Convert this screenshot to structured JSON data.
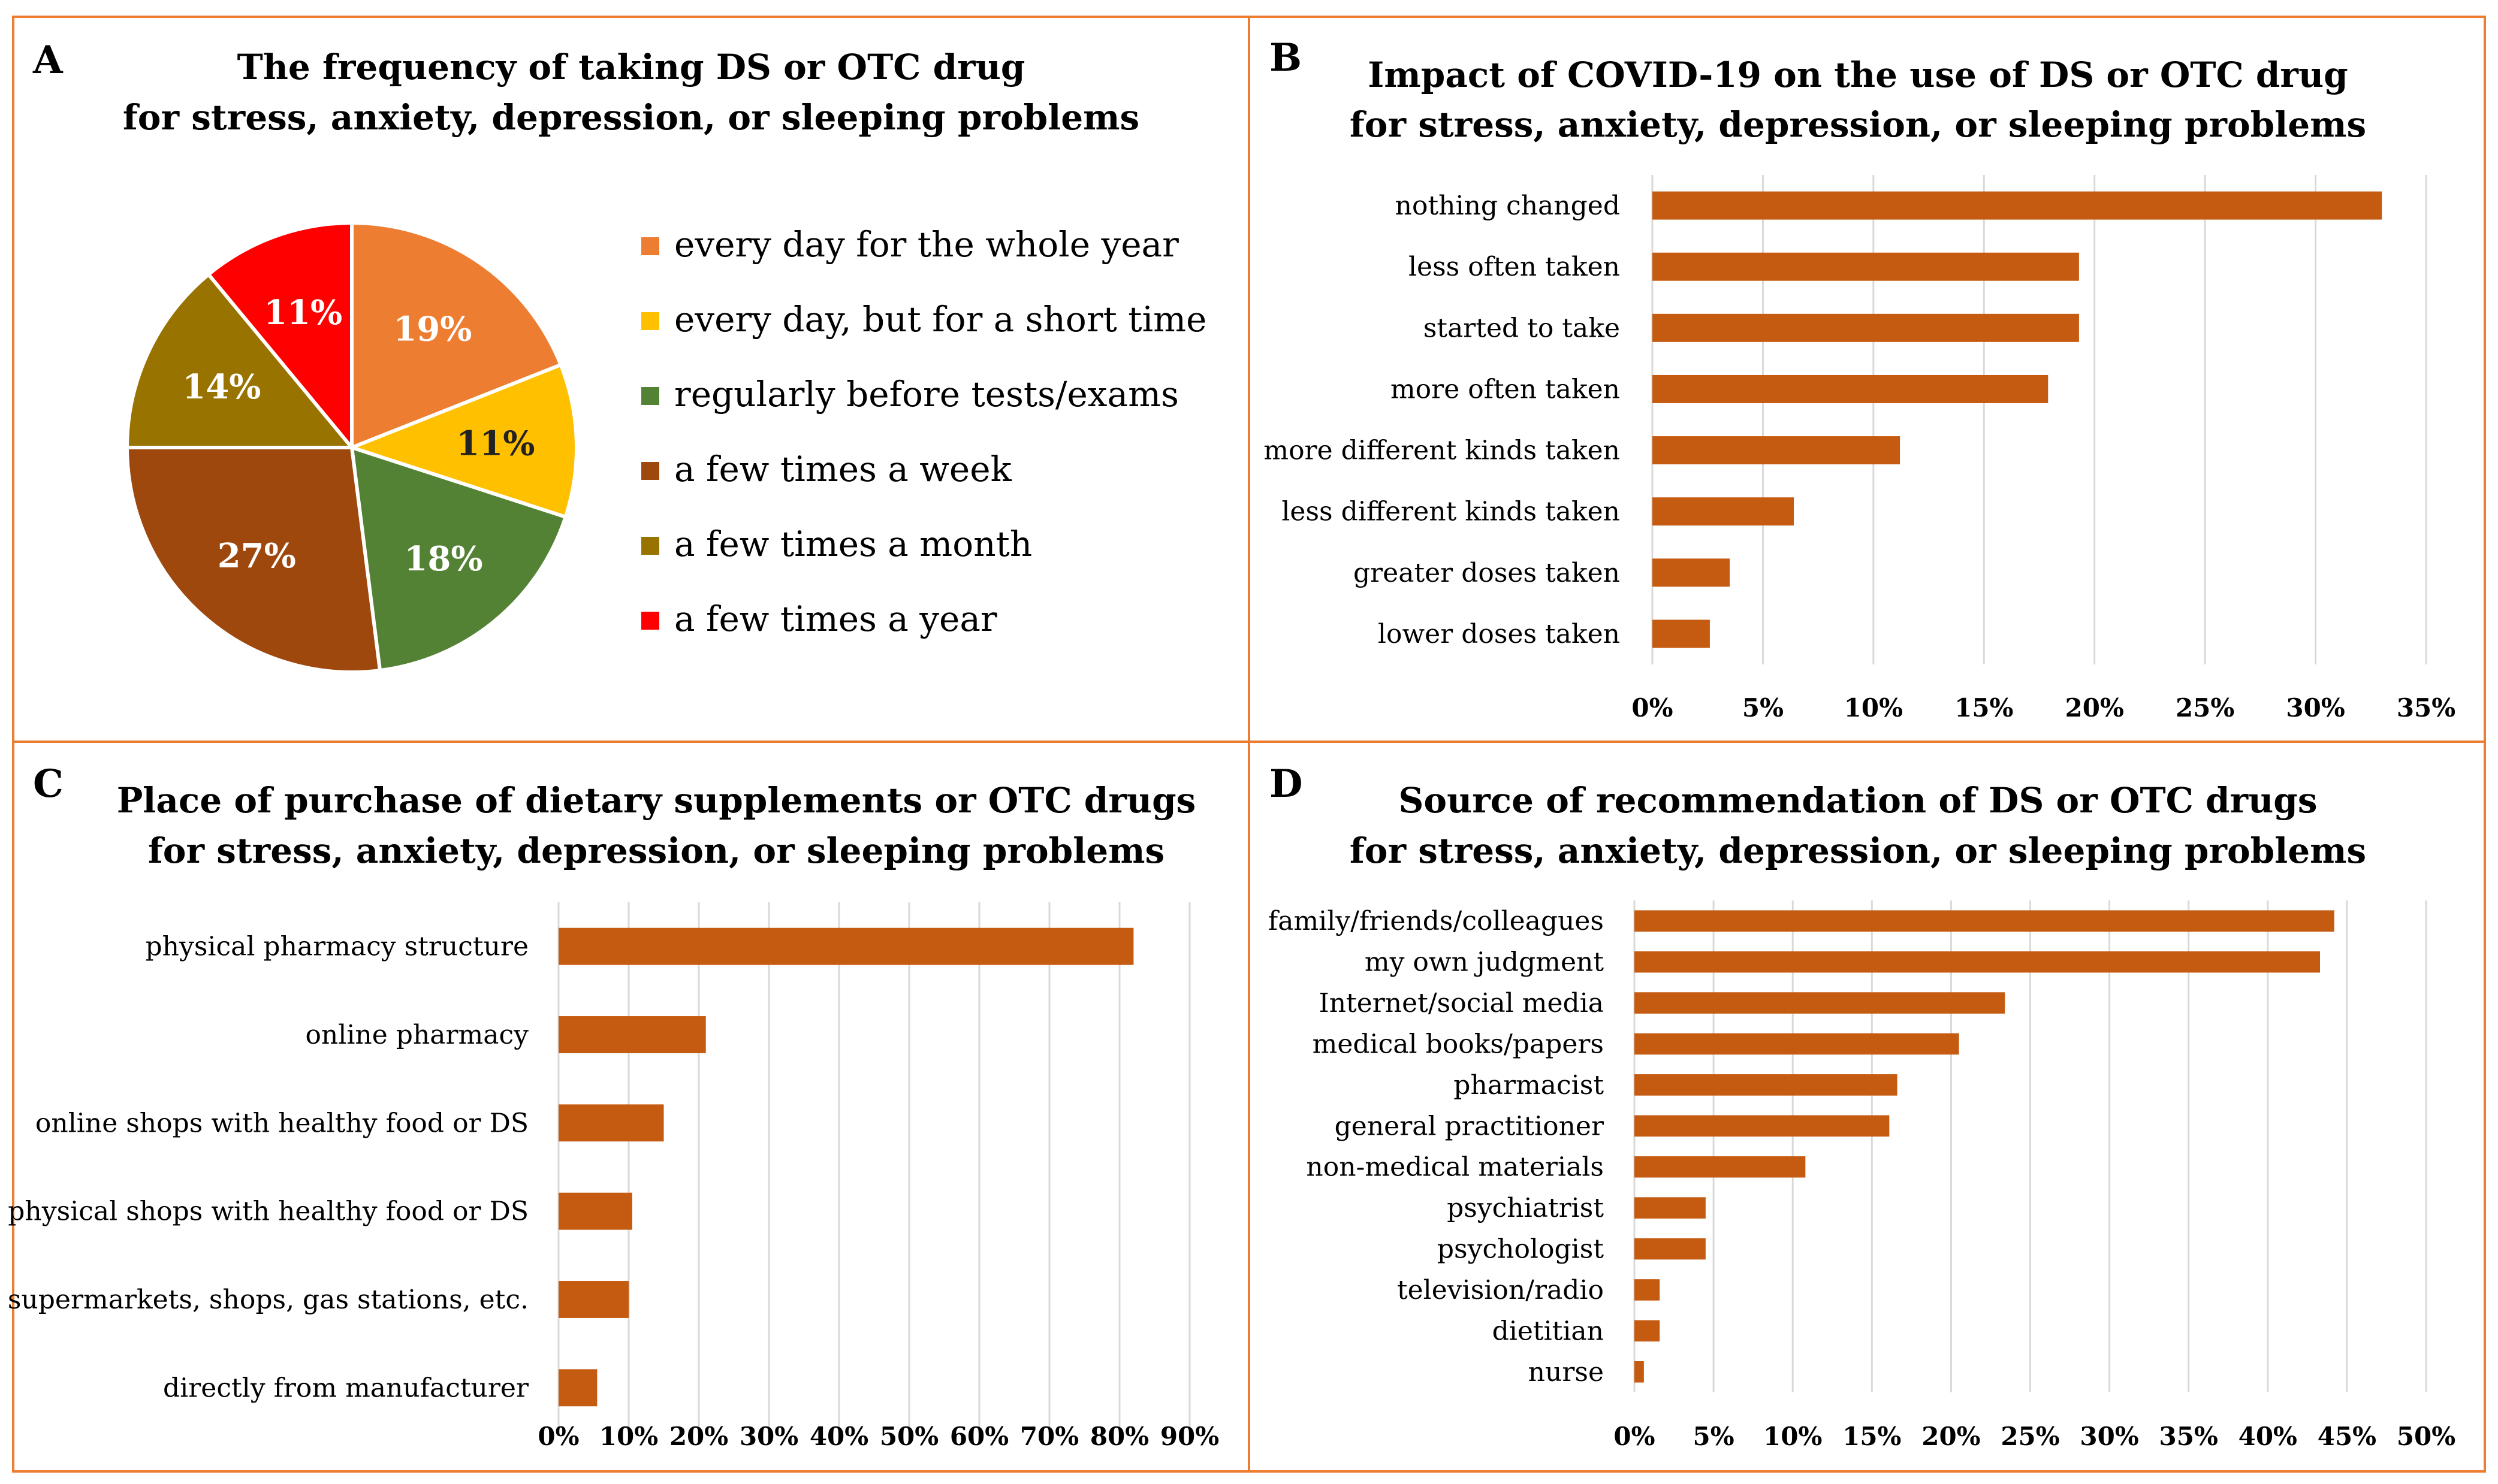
{
  "colors": {
    "bar": "#C55A11",
    "frame": "#ED7D31",
    "grid": "#D9D9D9"
  },
  "chart_data": [
    {
      "panel": "A",
      "type": "pie",
      "title_lines": [
        "The frequency of taking DS or OTC drug",
        "for stress, anxiety, depression, or sleeping problems"
      ],
      "slices": [
        {
          "label": "every day for the whole year",
          "value": 19,
          "display": "19%",
          "color": "#ED7D31"
        },
        {
          "label": "every day, but for a short time",
          "value": 11,
          "display": "11%",
          "color": "#FFC000"
        },
        {
          "label": "regularly before tests/exams",
          "value": 18,
          "display": "18%",
          "color": "#548235"
        },
        {
          "label": "a few times a week",
          "value": 27,
          "display": "27%",
          "color": "#9E480E"
        },
        {
          "label": "a few times a month",
          "value": 14,
          "display": "14%",
          "color": "#997300"
        },
        {
          "label": "a few times a year",
          "value": 11,
          "display": "11%",
          "color": "#FF0000"
        }
      ],
      "legend": "right"
    },
    {
      "panel": "B",
      "type": "bar",
      "orientation": "horizontal",
      "title_lines": [
        "Impact of COVID-19 on the use of DS or OTC drug",
        "for stress, anxiety, depression, or sleeping problems"
      ],
      "categories": [
        "nothing changed",
        "less often taken",
        "started to take",
        "more often taken",
        "more different kinds taken",
        "less different kinds taken",
        "greater doses taken",
        "lower doses taken"
      ],
      "values": [
        33,
        19.3,
        19.3,
        17.9,
        11.2,
        6.4,
        3.5,
        2.6
      ],
      "xlim": [
        0,
        35
      ],
      "ticks": [
        "0%",
        "5%",
        "10%",
        "15%",
        "20%",
        "25%",
        "30%",
        "35%"
      ]
    },
    {
      "panel": "C",
      "type": "bar",
      "orientation": "horizontal",
      "title_lines": [
        "Place of purchase of dietary supplements or OTC drugs",
        "for stress, anxiety, depression, or sleeping problems"
      ],
      "categories": [
        "physical pharmacy structure",
        "online pharmacy",
        "online shops with healthy food or DS",
        "physical shops with healthy food or DS",
        "supermarkets, shops, gas stations, etc.",
        "directly from manufacturer"
      ],
      "values": [
        82,
        21,
        15,
        10.5,
        10,
        5.5
      ],
      "xlim": [
        0,
        90
      ],
      "ticks": [
        "0%",
        "10%",
        "20%",
        "30%",
        "40%",
        "50%",
        "60%",
        "70%",
        "80%",
        "90%"
      ]
    },
    {
      "panel": "D",
      "type": "bar",
      "orientation": "horizontal",
      "title_lines": [
        "Source of recommendation of DS or OTC drugs",
        "for stress, anxiety, depression, or sleeping problems"
      ],
      "categories": [
        "family/friends/colleagues",
        "my own judgment",
        "Internet/social media",
        "medical books/papers",
        "pharmacist",
        "general practitioner",
        "non-medical materials",
        "psychiatrist",
        "psychologist",
        "television/radio",
        "dietitian",
        "nurse"
      ],
      "values": [
        44.2,
        43.3,
        23.4,
        20.5,
        16.6,
        16.1,
        10.8,
        4.5,
        4.5,
        1.6,
        1.6,
        0.6
      ],
      "xlim": [
        0,
        50
      ],
      "ticks": [
        "0%",
        "5%",
        "10%",
        "15%",
        "20%",
        "25%",
        "30%",
        "35%",
        "40%",
        "45%",
        "50%"
      ]
    }
  ]
}
